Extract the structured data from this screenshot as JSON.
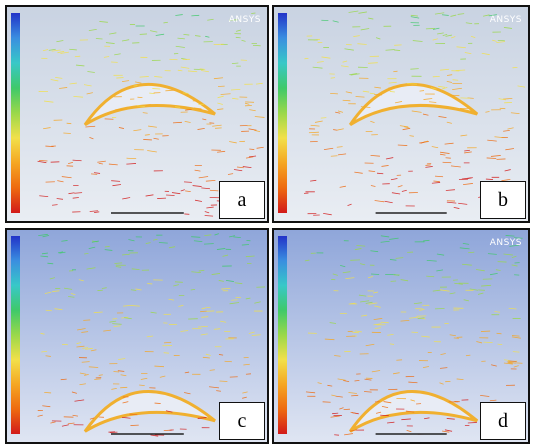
{
  "panels": [
    {
      "label": "a",
      "logo": "ANSYS"
    },
    {
      "label": "b",
      "logo": "ANSYS"
    },
    {
      "label": "c"
    },
    {
      "label": "d",
      "logo": "ANSYS"
    }
  ]
}
